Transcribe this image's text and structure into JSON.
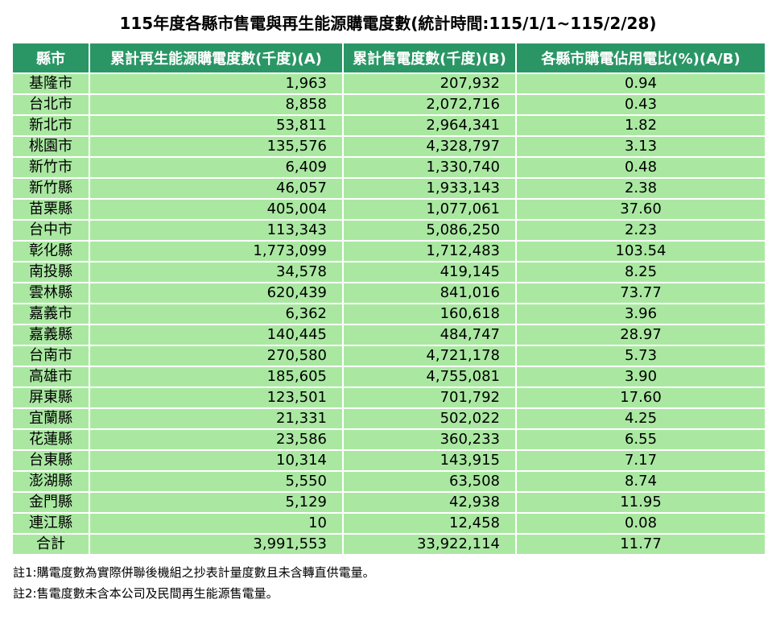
{
  "title": "115年度各縣市售電與再生能源購電度數(統計時間:115/1/1~115/2/28)",
  "chart_data": {
    "type": "table",
    "title": "115年度各縣市售電與再生能源購電度數(統計時間:115/1/1~115/2/28)",
    "columns": [
      "縣市",
      "累計再生能源購電度數(千度)(A)",
      "累計售電度數(千度)(B)",
      "各縣市購電佔用電比(%)(A/B)"
    ],
    "rows": [
      [
        "基隆市",
        "1,963",
        "207,932",
        "0.94"
      ],
      [
        "台北市",
        "8,858",
        "2,072,716",
        "0.43"
      ],
      [
        "新北市",
        "53,811",
        "2,964,341",
        "1.82"
      ],
      [
        "桃園市",
        "135,576",
        "4,328,797",
        "3.13"
      ],
      [
        "新竹市",
        "6,409",
        "1,330,740",
        "0.48"
      ],
      [
        "新竹縣",
        "46,057",
        "1,933,143",
        "2.38"
      ],
      [
        "苗栗縣",
        "405,004",
        "1,077,061",
        "37.60"
      ],
      [
        "台中市",
        "113,343",
        "5,086,250",
        "2.23"
      ],
      [
        "彰化縣",
        "1,773,099",
        "1,712,483",
        "103.54"
      ],
      [
        "南投縣",
        "34,578",
        "419,145",
        "8.25"
      ],
      [
        "雲林縣",
        "620,439",
        "841,016",
        "73.77"
      ],
      [
        "嘉義市",
        "6,362",
        "160,618",
        "3.96"
      ],
      [
        "嘉義縣",
        "140,445",
        "484,747",
        "28.97"
      ],
      [
        "台南市",
        "270,580",
        "4,721,178",
        "5.73"
      ],
      [
        "高雄市",
        "185,605",
        "4,755,081",
        "3.90"
      ],
      [
        "屏東縣",
        "123,501",
        "701,792",
        "17.60"
      ],
      [
        "宜蘭縣",
        "21,331",
        "502,022",
        "4.25"
      ],
      [
        "花蓮縣",
        "23,586",
        "360,233",
        "6.55"
      ],
      [
        "台東縣",
        "10,314",
        "143,915",
        "7.17"
      ],
      [
        "澎湖縣",
        "5,550",
        "63,508",
        "8.74"
      ],
      [
        "金門縣",
        "5,129",
        "42,938",
        "11.95"
      ],
      [
        "連江縣",
        "10",
        "12,458",
        "0.08"
      ],
      [
        "合計",
        "3,991,553",
        "33,922,114",
        "11.77"
      ]
    ]
  },
  "notes": [
    "註1:購電度數為實際併聯後機組之抄表計量度數且未含轉直供電量。",
    "註2:售電度數未含本公司及民間再生能源售電量。"
  ],
  "colors": {
    "header_bg": "#2A9665",
    "header_text": "#FFFFFF",
    "row_bg": "#AAE8A2",
    "grid_line": "#FFFFFF",
    "text": "#000000"
  }
}
